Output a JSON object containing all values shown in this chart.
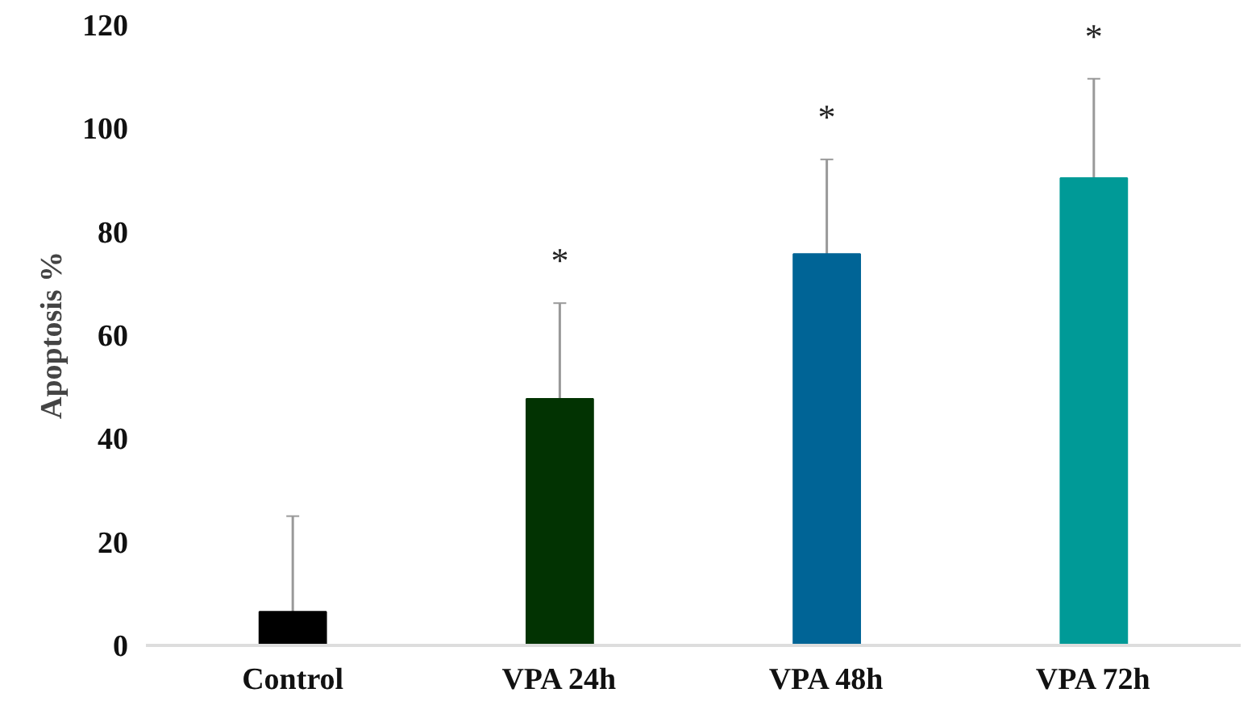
{
  "chart_data": {
    "type": "bar",
    "ylabel": "Apoptosis %",
    "categories": [
      "Control",
      "VPA 24h",
      "VPA 48h",
      "VPA 72h"
    ],
    "values": [
      6.5,
      47.7,
      75.7,
      90.4
    ],
    "colors": [
      "#000000",
      "#023302",
      "#006496",
      "#009a97"
    ],
    "errors": [
      [
        6.5,
        25
      ],
      [
        47.7,
        66.2
      ],
      [
        75.7,
        94
      ],
      [
        90.4,
        109.6
      ]
    ],
    "ylim": [
      0,
      120
    ],
    "yticks": [
      0,
      20,
      40,
      60,
      80,
      100,
      120
    ],
    "grid": false,
    "annotations": [
      "*",
      "*",
      "*"
    ]
  }
}
